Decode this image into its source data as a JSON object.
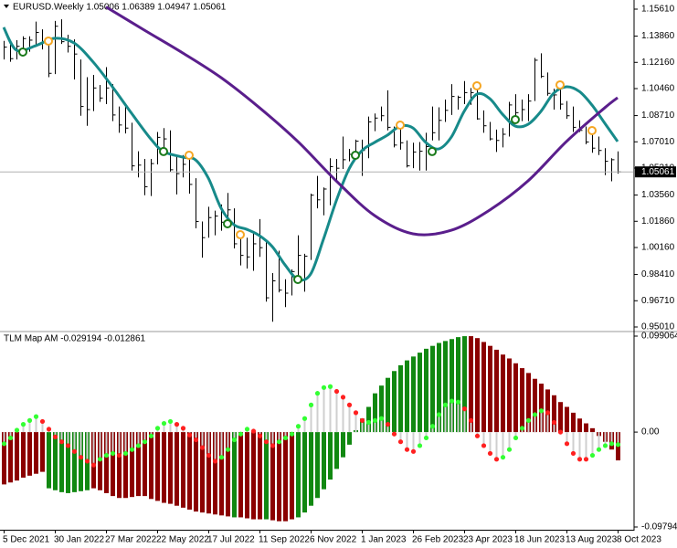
{
  "chart_data": [
    {
      "type": "ohlc",
      "title": "EURUSD.Weekly  1.05006 1.06389 1.04947 1.05061",
      "color": "#000000",
      "high": [
        1.1355,
        1.1355,
        1.136,
        1.1385,
        1.1385,
        1.148,
        1.143,
        1.135,
        1.1485,
        1.1495,
        1.1395,
        1.1365,
        1.1235,
        1.112,
        1.1135,
        1.107,
        1.1185,
        1.1075,
        1.093,
        1.0935,
        1.0825,
        1.064,
        1.059,
        1.059,
        1.0765,
        1.079,
        1.0775,
        1.0605,
        1.0615,
        1.0615,
        1.0465,
        1.0185,
        1.028,
        1.0255,
        1.0295,
        1.037,
        1.027,
        1.0095,
        1.008,
        1.0115,
        1.02,
        1.005,
        0.985,
        0.9995,
        0.981,
        0.9875,
        1.0095,
        0.9975,
        1.0365,
        1.048,
        1.0405,
        1.0595,
        1.059,
        1.0735,
        1.0655,
        1.0715,
        1.0715,
        1.0865,
        1.0885,
        1.093,
        1.1035,
        1.08,
        1.0805,
        1.071,
        1.0695,
        1.07,
        1.076,
        1.093,
        1.0925,
        1.0975,
        1.1075,
        1.1,
        1.1095,
        1.105,
        1.109,
        1.0905,
        1.083,
        1.078,
        1.079,
        1.096,
        1.101,
        1.0975,
        1.101,
        1.1245,
        1.1275,
        1.115,
        1.1045,
        1.1065,
        1.0965,
        1.093,
        1.084,
        1.08,
        1.077,
        1.0735,
        1.066,
        1.0595,
        1.06389
      ],
      "low": [
        1.1235,
        1.122,
        1.1235,
        1.1275,
        1.1285,
        1.1315,
        1.13,
        1.112,
        1.114,
        1.1335,
        1.128,
        1.1105,
        1.087,
        1.0805,
        1.09,
        1.096,
        1.0945,
        1.0835,
        1.076,
        1.0755,
        1.0515,
        1.047,
        1.0355,
        1.035,
        1.0555,
        1.063,
        1.0505,
        1.036,
        1.047,
        1.0365,
        1.014,
        0.995,
        1.008,
        1.0095,
        1.0125,
        1.017,
        1.001,
        0.99,
        0.988,
        0.9865,
        0.9955,
        0.9665,
        0.9535,
        0.9725,
        0.963,
        0.9705,
        0.981,
        0.973,
        0.9935,
        1.027,
        1.0225,
        1.029,
        1.044,
        1.0525,
        1.0575,
        1.059,
        1.048,
        1.0595,
        1.077,
        1.0835,
        1.0775,
        1.0665,
        1.065,
        1.0535,
        1.053,
        1.0515,
        1.0515,
        1.071,
        1.071,
        1.083,
        1.0875,
        1.091,
        1.0945,
        1.094,
        1.0845,
        1.076,
        1.071,
        1.0635,
        1.0665,
        1.0735,
        1.0845,
        1.0835,
        1.0835,
        1.0965,
        1.1115,
        1.1,
        1.091,
        1.091,
        1.085,
        1.0765,
        1.0765,
        1.0685,
        1.063,
        1.0615,
        1.0485,
        1.0445,
        1.04947
      ],
      "close": [
        1.1315,
        1.124,
        1.132,
        1.137,
        1.136,
        1.141,
        1.1345,
        1.1145,
        1.145,
        1.135,
        1.132,
        1.127,
        1.093,
        1.091,
        1.105,
        1.0985,
        1.105,
        1.0875,
        1.081,
        1.079,
        1.0545,
        1.055,
        1.041,
        1.056,
        1.073,
        1.072,
        1.052,
        1.0495,
        1.0555,
        1.0425,
        1.0185,
        1.008,
        1.021,
        1.022,
        1.018,
        1.026,
        1.004,
        0.9965,
        0.9955,
        1.004,
        1.0015,
        0.969,
        0.98,
        0.974,
        0.972,
        0.986,
        0.9965,
        0.996,
        1.0355,
        1.0325,
        1.0395,
        1.054,
        1.053,
        1.0585,
        1.062,
        1.0705,
        1.0645,
        1.083,
        1.0855,
        1.087,
        1.0795,
        1.068,
        1.0695,
        1.0545,
        1.0635,
        1.064,
        1.067,
        1.076,
        1.084,
        1.0905,
        1.0995,
        1.099,
        1.102,
        1.102,
        1.085,
        1.0805,
        1.072,
        1.071,
        1.075,
        1.094,
        1.089,
        1.091,
        1.0965,
        1.123,
        1.1125,
        1.1015,
        1.1005,
        1.0945,
        1.087,
        1.0795,
        1.0775,
        1.07,
        1.066,
        1.0645,
        1.0575,
        1.0585,
        1.05061
      ],
      "lines": [
        {
          "color": "#178a8a",
          "x": [
            0,
            2,
            5,
            8,
            11,
            14,
            17,
            20,
            23,
            25,
            28,
            30,
            32,
            34,
            36,
            38,
            40,
            42,
            44,
            46,
            48,
            50,
            52,
            54,
            56,
            58,
            60,
            62,
            64,
            66,
            68,
            70,
            72,
            74,
            76,
            78,
            80,
            82,
            84,
            86,
            88,
            90,
            92,
            94,
            96
          ],
          "values": [
            1.1443,
            1.1295,
            1.1324,
            1.1372,
            1.1342,
            1.1218,
            1.1058,
            1.0886,
            1.072,
            1.0638,
            1.0602,
            1.0584,
            1.0466,
            1.0271,
            1.0164,
            1.0134,
            1.0093,
            1.0022,
            0.9903,
            0.9809,
            0.9844,
            1.0069,
            1.0318,
            1.0525,
            1.0643,
            1.0697,
            1.0744,
            1.0803,
            1.0791,
            1.0697,
            1.0655,
            1.0732,
            1.0898,
            1.101,
            1.0981,
            1.088,
            1.0803,
            1.0815,
            1.0898,
            1.1016,
            1.1058,
            1.1028,
            1.0939,
            1.0821,
            1.0703
          ]
        },
        {
          "color": "#5a1e8c",
          "x": [
            16,
            22,
            28,
            34,
            40,
            46,
            52,
            58,
            64,
            70,
            76,
            82,
            88,
            94,
            96
          ],
          "values": [
            1.1575,
            1.1425,
            1.1277,
            1.1117,
            1.0922,
            1.0703,
            1.0448,
            1.0223,
            1.0105,
            1.0128,
            1.0259,
            1.0448,
            1.0703,
            1.0922,
            1.0987
          ]
        }
      ],
      "signals": [
        {
          "color": "#f5a623",
          "x": [
            7,
            29,
            37,
            62,
            74,
            87,
            92
          ],
          "values": [
            1.1354,
            1.0614,
            1.0099,
            1.0809,
            1.1064,
            1.107,
            1.0774
          ]
        },
        {
          "color": "#1a7a1a",
          "x": [
            3,
            25,
            35,
            46,
            55,
            67,
            80
          ],
          "values": [
            1.1283,
            1.0638,
            1.017,
            0.9809,
            1.0614,
            1.0638,
            1.0845
          ]
        }
      ],
      "ylim": [
        0.9501,
        1.1561
      ],
      "yticks": [
        {
          "value": 1.1561,
          "label": "1.15610"
        },
        {
          "value": 1.1386,
          "label": "1.13860"
        },
        {
          "value": 1.1216,
          "label": "1.12160"
        },
        {
          "value": 1.1046,
          "label": "1.10460"
        },
        {
          "value": 1.0871,
          "label": "1.08710"
        },
        {
          "value": 1.0701,
          "label": "1.07010"
        },
        {
          "value": 1.0531,
          "label": "1.05310"
        },
        {
          "value": 1.0356,
          "label": "1.03560"
        },
        {
          "value": 1.0186,
          "label": "1.01860"
        },
        {
          "value": 1.0016,
          "label": "1.00160"
        },
        {
          "value": 0.9841,
          "label": "0.98410"
        },
        {
          "value": 0.9671,
          "label": "0.96710"
        },
        {
          "value": 0.9501,
          "label": "0.95010"
        }
      ],
      "grid": false
    },
    {
      "type": "bar",
      "title": "TLM Map AM -0.029194 -0.012861",
      "categories": [
        "5 Dec 2021",
        null,
        null,
        null,
        null,
        null,
        null,
        null,
        "30 Jan 2022",
        null,
        null,
        null,
        null,
        null,
        null,
        null,
        "27 Mar 2022",
        null,
        null,
        null,
        null,
        null,
        null,
        null,
        "22 May 2022",
        null,
        null,
        null,
        null,
        null,
        null,
        null,
        "17 Jul 2022",
        null,
        null,
        null,
        null,
        null,
        null,
        null,
        "11 Sep 2022",
        null,
        null,
        null,
        null,
        null,
        null,
        null,
        "6 Nov 2022",
        null,
        null,
        null,
        null,
        null,
        null,
        null,
        "1 Jan 2023",
        null,
        null,
        null,
        null,
        null,
        null,
        null,
        "26 Feb 2023",
        null,
        null,
        null,
        null,
        null,
        null,
        null,
        "23 Apr 2023",
        null,
        null,
        null,
        null,
        null,
        null,
        null,
        "18 Jun 2023",
        null,
        null,
        null,
        null,
        null,
        null,
        null,
        "13 Aug 2023",
        null,
        null,
        null,
        null,
        null,
        null,
        null,
        "8 Oct 2023"
      ],
      "values": [
        -0.054,
        -0.052,
        -0.05,
        -0.047,
        -0.045,
        -0.043,
        -0.041,
        -0.058,
        -0.06,
        -0.062,
        -0.063,
        -0.062,
        -0.061,
        -0.06,
        -0.058,
        -0.06,
        -0.063,
        -0.066,
        -0.068,
        -0.068,
        -0.067,
        -0.066,
        -0.066,
        -0.069,
        -0.071,
        -0.073,
        -0.074,
        -0.076,
        -0.078,
        -0.08,
        -0.082,
        -0.083,
        -0.084,
        -0.085,
        -0.086,
        -0.087,
        -0.088,
        -0.088,
        -0.089,
        -0.09,
        -0.09,
        -0.09,
        -0.091,
        -0.092,
        -0.092,
        -0.09,
        -0.088,
        -0.083,
        -0.076,
        -0.068,
        -0.059,
        -0.049,
        -0.038,
        -0.026,
        -0.013,
        0.002,
        0.014,
        0.026,
        0.04,
        0.048,
        0.056,
        0.063,
        0.069,
        0.074,
        0.078,
        0.082,
        0.086,
        0.089,
        0.092,
        0.094,
        0.096,
        0.098,
        0.099,
        0.099,
        0.097,
        0.093,
        0.089,
        0.085,
        0.08,
        0.076,
        0.071,
        0.066,
        0.061,
        0.055,
        0.05,
        0.044,
        0.038,
        0.031,
        0.026,
        0.02,
        0.014,
        0.009,
        0.004,
        -0.004,
        -0.01,
        -0.018,
        -0.029194
      ],
      "colors": [
        "#8b0000",
        "#8b0000",
        "#8b0000",
        "#8b0000",
        "#8b0000",
        "#8b0000",
        "#8b0000",
        "#118811",
        "#118811",
        "#118811",
        "#118811",
        "#118811",
        "#118811",
        "#118811",
        "#8b0000",
        "#8b0000",
        "#8b0000",
        "#8b0000",
        "#8b0000",
        "#8b0000",
        "#8b0000",
        "#8b0000",
        "#8b0000",
        "#8b0000",
        "#8b0000",
        "#8b0000",
        "#8b0000",
        "#8b0000",
        "#8b0000",
        "#8b0000",
        "#8b0000",
        "#8b0000",
        "#8b0000",
        "#8b0000",
        "#8b0000",
        "#8b0000",
        "#118811",
        "#8b0000",
        "#8b0000",
        "#8b0000",
        "#8b0000",
        "#118811",
        "#8b0000",
        "#8b0000",
        "#8b0000",
        "#8b0000",
        "#118811",
        "#118811",
        "#118811",
        "#118811",
        "#118811",
        "#118811",
        "#118811",
        "#118811",
        "#118811",
        "#118811",
        "#118811",
        "#118811",
        "#118811",
        "#118811",
        "#118811",
        "#118811",
        "#118811",
        "#118811",
        "#118811",
        "#118811",
        "#118811",
        "#118811",
        "#118811",
        "#118811",
        "#118811",
        "#118811",
        "#118811",
        "#8b0000",
        "#8b0000",
        "#8b0000",
        "#8b0000",
        "#8b0000",
        "#8b0000",
        "#8b0000",
        "#8b0000",
        "#8b0000",
        "#8b0000",
        "#8b0000",
        "#8b0000",
        "#8b0000",
        "#8b0000",
        "#8b0000",
        "#8b0000",
        "#8b0000",
        "#8b0000",
        "#8b0000",
        "#8b0000",
        "#8b0000",
        "#8b0000",
        "#8b0000",
        "#8b0000"
      ],
      "dots": {
        "stem_color": "#cfcfcf",
        "values": [
          -0.012,
          -0.006,
          0.002,
          0.008,
          0.012,
          0.016,
          0.011,
          0.003,
          -0.005,
          -0.01,
          -0.014,
          -0.02,
          -0.026,
          -0.03,
          -0.034,
          -0.028,
          -0.024,
          -0.022,
          -0.024,
          -0.022,
          -0.018,
          -0.014,
          -0.01,
          -0.004,
          0.004,
          0.009,
          0.011,
          0.008,
          0.004,
          -0.003,
          -0.008,
          -0.016,
          -0.024,
          -0.03,
          -0.026,
          -0.018,
          -0.008,
          -0.002,
          0.003,
          0.001,
          -0.004,
          -0.01,
          -0.014,
          -0.01,
          -0.006,
          -0.002,
          0.006,
          0.014,
          0.028,
          0.04,
          0.046,
          0.047,
          0.042,
          0.036,
          0.028,
          0.02,
          0.012,
          0.01,
          0.012,
          0.014,
          0.008,
          -0.002,
          -0.01,
          -0.018,
          -0.02,
          -0.014,
          -0.006,
          0.006,
          0.018,
          0.028,
          0.032,
          0.031,
          0.024,
          0.012,
          -0.004,
          -0.014,
          -0.022,
          -0.028,
          -0.026,
          -0.018,
          -0.006,
          0.004,
          0.012,
          0.018,
          0.022,
          0.02,
          0.01,
          0.0,
          -0.012,
          -0.022,
          -0.028,
          -0.028,
          -0.024,
          -0.018,
          -0.014,
          -0.012,
          -0.012861
        ],
        "colors": [
          "#33ff33",
          "#33ff33",
          "#33ff33",
          "#33ff33",
          "#33ff33",
          "#33ff33",
          "#ff2020",
          "#ff2020",
          "#ff2020",
          "#ff2020",
          "#ff2020",
          "#ff2020",
          "#ff2020",
          "#ff2020",
          "#ff2020",
          "#33ff33",
          "#33ff33",
          "#33ff33",
          "#ff2020",
          "#33ff33",
          "#33ff33",
          "#33ff33",
          "#33ff33",
          "#33ff33",
          "#33ff33",
          "#33ff33",
          "#33ff33",
          "#ff2020",
          "#ff2020",
          "#ff2020",
          "#ff2020",
          "#ff2020",
          "#ff2020",
          "#ff2020",
          "#33ff33",
          "#33ff33",
          "#33ff33",
          "#33ff33",
          "#33ff33",
          "#ff2020",
          "#ff2020",
          "#ff2020",
          "#ff2020",
          "#33ff33",
          "#33ff33",
          "#33ff33",
          "#33ff33",
          "#33ff33",
          "#33ff33",
          "#33ff33",
          "#33ff33",
          "#33ff33",
          "#ff2020",
          "#ff2020",
          "#ff2020",
          "#ff2020",
          "#ff2020",
          "#33ff33",
          "#33ff33",
          "#33ff33",
          "#ff2020",
          "#ff2020",
          "#ff2020",
          "#ff2020",
          "#ff2020",
          "#33ff33",
          "#33ff33",
          "#33ff33",
          "#33ff33",
          "#33ff33",
          "#33ff33",
          "#33ff33",
          "#ff2020",
          "#ff2020",
          "#ff2020",
          "#ff2020",
          "#ff2020",
          "#ff2020",
          "#33ff33",
          "#33ff33",
          "#33ff33",
          "#33ff33",
          "#33ff33",
          "#33ff33",
          "#33ff33",
          "#ff2020",
          "#ff2020",
          "#ff2020",
          "#ff2020",
          "#ff2020",
          "#ff2020",
          "#ff2020",
          "#33ff33",
          "#33ff33",
          "#33ff33",
          "#33ff33",
          "#33ff33"
        ]
      },
      "ylim": [
        -0.097945,
        0.099064
      ],
      "yticks": [
        0.099064,
        {
          "value": 0,
          "label": "0.00"
        },
        -0.097945
      ],
      "grid": false
    }
  ]
}
